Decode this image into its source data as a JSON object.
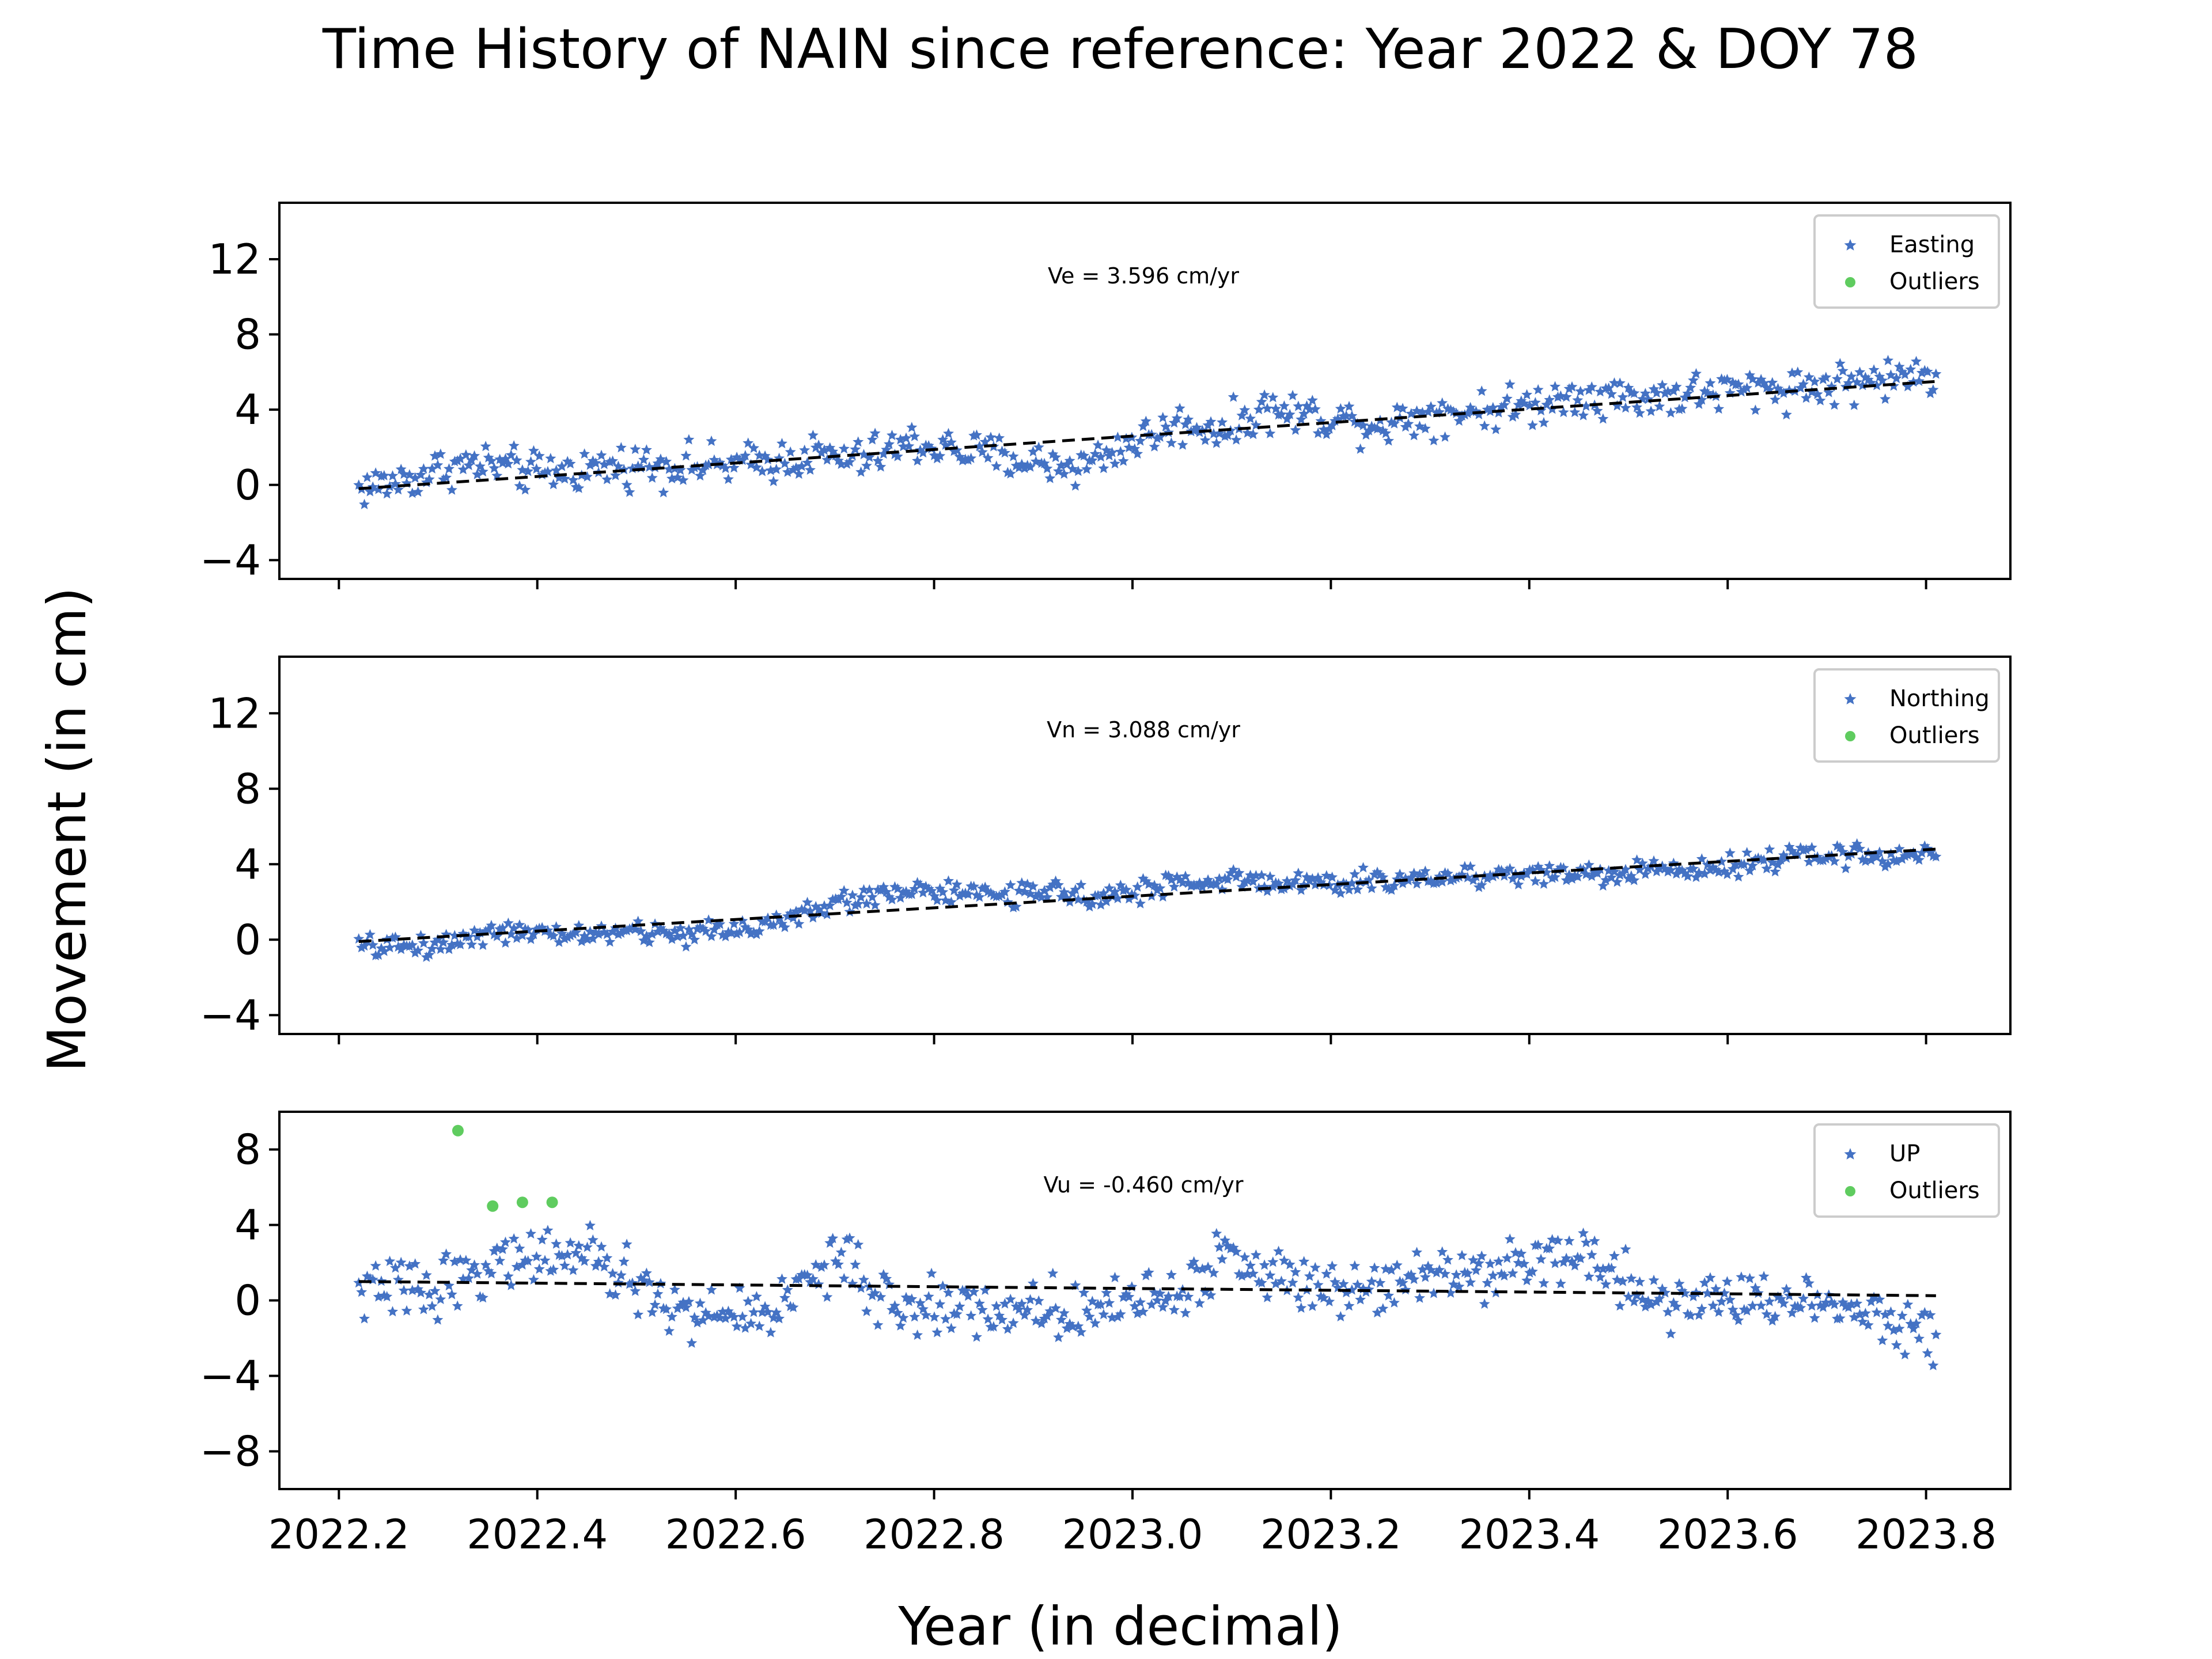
{
  "figure": {
    "title": "Time History of NAIN since reference: Year 2022 & DOY 78",
    "xlabel": "Year (in decimal)",
    "ylabel": "Movement (in cm)",
    "x_tick_labels": [
      "2022.2",
      "2022.4",
      "2022.6",
      "2022.8",
      "2023.0",
      "2023.2",
      "2023.4",
      "2023.6",
      "2023.8"
    ]
  },
  "colors": {
    "series": "#4472c4",
    "outliers": "#5fcc5f",
    "trend": "#000000",
    "frame": "#000000"
  },
  "chart_data": [
    {
      "type": "scatter",
      "panel": "easting",
      "annotation": "Ve =  3.596 cm/yr",
      "legend": [
        "Easting",
        "Outliers"
      ],
      "legend_position": "top-right",
      "xlim": [
        2022.14,
        2023.885
      ],
      "ylim": [
        -5,
        15
      ],
      "yticks": [
        -4,
        0,
        4,
        8,
        12
      ],
      "x_start": 2022.22,
      "x_end": 2023.81,
      "anchors_x": [
        2022.22,
        2022.27,
        2022.31,
        2022.35,
        2022.4,
        2022.5,
        2022.6,
        2022.68,
        2022.72,
        2022.78,
        2022.83,
        2022.9,
        2022.95,
        2023.0,
        2023.05,
        2023.1,
        2023.13,
        2023.2,
        2023.25,
        2023.3,
        2023.35,
        2023.4,
        2023.45,
        2023.5,
        2023.55,
        2023.6,
        2023.7,
        2023.81
      ],
      "anchors_y": [
        -0.2,
        0.3,
        1.0,
        1.1,
        0.6,
        1.1,
        1.0,
        1.6,
        1.3,
        2.2,
        1.8,
        1.2,
        1.0,
        2.3,
        3.2,
        3.0,
        4.0,
        3.6,
        3.2,
        3.8,
        4.0,
        4.2,
        4.9,
        4.6,
        4.8,
        5.0,
        5.3,
        5.9
      ],
      "noise": 0.55,
      "points": 560,
      "trend": {
        "x": [
          2022.22,
          2023.81
        ],
        "y": [
          -0.2,
          5.5
        ]
      },
      "outliers": []
    },
    {
      "type": "scatter",
      "panel": "northing",
      "annotation": "Vn =  3.088 cm/yr",
      "legend": [
        "Northing",
        "Outliers"
      ],
      "legend_position": "top-right",
      "xlim": [
        2022.14,
        2023.885
      ],
      "ylim": [
        -5,
        15
      ],
      "yticks": [
        -4,
        0,
        4,
        8,
        12
      ],
      "x_start": 2022.22,
      "x_end": 2023.81,
      "anchors_x": [
        2022.22,
        2022.3,
        2022.35,
        2022.4,
        2022.5,
        2022.55,
        2022.6,
        2022.65,
        2022.7,
        2022.75,
        2022.78,
        2022.82,
        2022.88,
        2022.95,
        2023.0,
        2023.05,
        2023.1,
        2023.2,
        2023.3,
        2023.4,
        2023.5,
        2023.6,
        2023.7,
        2023.81
      ],
      "anchors_y": [
        -0.4,
        -0.3,
        0.5,
        0.2,
        0.4,
        0.3,
        0.6,
        1.0,
        1.9,
        2.5,
        2.7,
        2.4,
        2.4,
        2.4,
        2.5,
        3.0,
        3.2,
        2.9,
        3.3,
        3.5,
        3.5,
        4.0,
        4.5,
        4.4
      ],
      "noise": 0.3,
      "points": 560,
      "trend": {
        "x": [
          2022.22,
          2023.81
        ],
        "y": [
          -0.1,
          4.8
        ]
      },
      "outliers": []
    },
    {
      "type": "scatter",
      "panel": "up",
      "annotation": "Vu = -0.460 cm/yr",
      "legend": [
        "UP",
        "Outliers"
      ],
      "legend_position": "top-right",
      "xlim": [
        2022.14,
        2023.885
      ],
      "ylim": [
        -10,
        10
      ],
      "yticks": [
        -8,
        -4,
        0,
        4,
        8
      ],
      "x_start": 2022.22,
      "x_end": 2023.81,
      "anchors_x": [
        2022.22,
        2022.3,
        2022.35,
        2022.4,
        2022.45,
        2022.5,
        2022.55,
        2022.62,
        2022.66,
        2022.7,
        2022.75,
        2022.8,
        2022.88,
        2022.95,
        2023.05,
        2023.1,
        2023.13,
        2023.2,
        2023.3,
        2023.4,
        2023.45,
        2023.5,
        2023.55,
        2023.65,
        2023.72,
        2023.81
      ],
      "anchors_y": [
        0.5,
        0.8,
        1.8,
        2.5,
        2.2,
        0.8,
        -0.8,
        -0.7,
        0.3,
        2.5,
        -0.3,
        -0.3,
        -0.5,
        -0.4,
        0.5,
        2.5,
        1.5,
        0.7,
        1.5,
        2.0,
        2.6,
        0.8,
        0.0,
        0.0,
        0.0,
        -1.8
      ],
      "noise": 0.75,
      "points": 560,
      "trend": {
        "x": [
          2022.22,
          2023.81
        ],
        "y": [
          1.0,
          0.25
        ]
      },
      "outliers": [
        {
          "x": 2022.32,
          "y": 9.0
        },
        {
          "x": 2022.355,
          "y": 5.0
        },
        {
          "x": 2022.385,
          "y": 5.2
        },
        {
          "x": 2022.415,
          "y": 5.2
        }
      ]
    }
  ]
}
